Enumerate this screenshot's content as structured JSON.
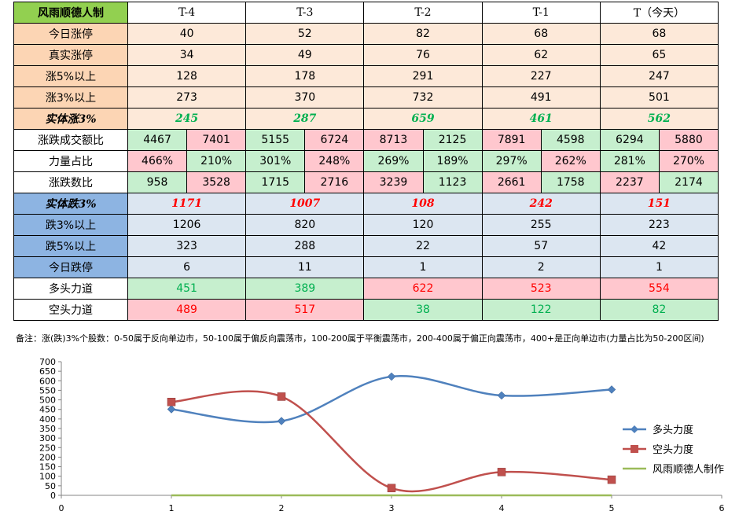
{
  "table": {
    "title": "风雨顺德人制",
    "columns": [
      "T-4",
      "T-3",
      "T-2",
      "T-1",
      "T（今天）"
    ],
    "upper_rows": [
      {
        "label": "今日涨停",
        "values": [
          "40",
          "52",
          "82",
          "68",
          "68"
        ]
      },
      {
        "label": "真实涨停",
        "values": [
          "34",
          "49",
          "76",
          "62",
          "65"
        ]
      },
      {
        "label": "涨5%以上",
        "values": [
          "128",
          "178",
          "291",
          "227",
          "247"
        ]
      },
      {
        "label": "涨3%以上",
        "values": [
          "273",
          "370",
          "732",
          "491",
          "501"
        ]
      }
    ],
    "rise_row": {
      "label": "实体涨3%",
      "values": [
        "245",
        "287",
        "659",
        "461",
        "562"
      ]
    },
    "ratio_rows": [
      {
        "label": "涨跌成交额比",
        "pairs": [
          [
            "4467",
            "7401"
          ],
          [
            "5155",
            "6724"
          ],
          [
            "8713",
            "2125"
          ],
          [
            "7891",
            "4598"
          ],
          [
            "6294",
            "5880"
          ]
        ],
        "colors": [
          [
            "green",
            "pink"
          ],
          [
            "green",
            "pink"
          ],
          [
            "pink",
            "green"
          ],
          [
            "pink",
            "green"
          ],
          [
            "green",
            "pink"
          ]
        ]
      },
      {
        "label": "力量占比",
        "pairs": [
          [
            "466%",
            "210%"
          ],
          [
            "301%",
            "248%"
          ],
          [
            "269%",
            "189%"
          ],
          [
            "297%",
            "262%"
          ],
          [
            "281%",
            "270%"
          ]
        ],
        "colors": [
          [
            "pink",
            "green"
          ],
          [
            "green",
            "pink"
          ],
          [
            "green",
            "green"
          ],
          [
            "green",
            "pink"
          ],
          [
            "green",
            "pink"
          ]
        ]
      },
      {
        "label": "涨跌数比",
        "pairs": [
          [
            "958",
            "3528"
          ],
          [
            "1715",
            "2716"
          ],
          [
            "3239",
            "1123"
          ],
          [
            "2661",
            "1758"
          ],
          [
            "2237",
            "2174"
          ]
        ],
        "colors": [
          [
            "green",
            "pink"
          ],
          [
            "green",
            "pink"
          ],
          [
            "pink",
            "green"
          ],
          [
            "pink",
            "green"
          ],
          [
            "pink",
            "green"
          ]
        ]
      }
    ],
    "fall_row": {
      "label": "实体跌3%",
      "values": [
        "1171",
        "1007",
        "108",
        "242",
        "151"
      ]
    },
    "lower_rows": [
      {
        "label": "跌3%以上",
        "values": [
          "1206",
          "820",
          "120",
          "255",
          "223"
        ]
      },
      {
        "label": "跌5%以上",
        "values": [
          "323",
          "288",
          "22",
          "57",
          "42"
        ]
      },
      {
        "label": "今日跌停",
        "values": [
          "6",
          "11",
          "1",
          "2",
          "1"
        ]
      }
    ],
    "force_rows": [
      {
        "label": "多头力道",
        "values": [
          "451",
          "389",
          "622",
          "523",
          "554"
        ],
        "colors": [
          "green",
          "green",
          "pink",
          "pink",
          "pink"
        ]
      },
      {
        "label": "空头力道",
        "values": [
          "489",
          "517",
          "38",
          "122",
          "82"
        ],
        "colors": [
          "pink",
          "pink",
          "green",
          "green",
          "green"
        ]
      }
    ]
  },
  "note": "备注：涨(跌)3%个股数：0-50属于反向单边市，50-100属于偏反向震荡市，100-200属于平衡震荡市，200-400属于偏正向震荡市，400+是正向单边市(力量占比为50-200区间)",
  "colors": {
    "bull": "#4f81bd",
    "bear": "#c0504d",
    "maker": "#9bbb59"
  },
  "chart_data": {
    "type": "line",
    "x": [
      1,
      2,
      3,
      4,
      5
    ],
    "series": [
      {
        "name": "多头力度",
        "values": [
          451,
          389,
          622,
          523,
          554
        ],
        "color": "#4f81bd",
        "marker": "diamond"
      },
      {
        "name": "空头力度",
        "values": [
          489,
          517,
          38,
          122,
          82
        ],
        "color": "#c0504d",
        "marker": "square"
      },
      {
        "name": "风雨顺德人制作",
        "values": [
          0,
          0,
          0,
          0,
          0
        ],
        "color": "#9bbb59",
        "marker": "none"
      }
    ],
    "xlim": [
      0,
      6
    ],
    "ylim": [
      0,
      700
    ],
    "xticks": [
      "0",
      "1",
      "2",
      "3",
      "4",
      "5",
      "6"
    ],
    "yticks": [
      "0",
      "50",
      "100",
      "150",
      "200",
      "250",
      "300",
      "350",
      "400",
      "450",
      "500",
      "550",
      "600",
      "650",
      "700"
    ],
    "legend": "right",
    "grid": false
  }
}
